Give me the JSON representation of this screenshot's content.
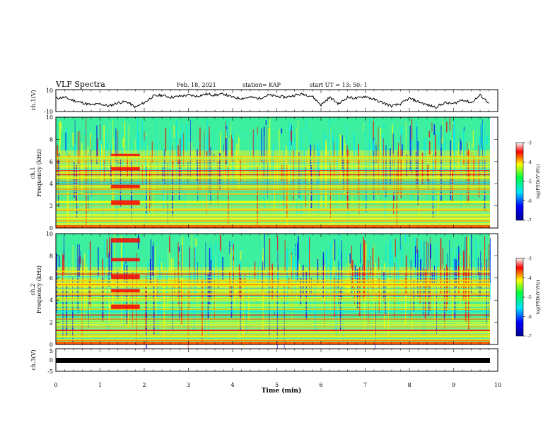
{
  "header": {
    "title": "VLF Spectra",
    "date": "Feb. 18, 2021",
    "station": "station= KAP",
    "start": "start  UT  =   13: 50: 1"
  },
  "chart_data": [
    {
      "id": "ch1-waveform",
      "type": "line",
      "ylabel": "ch.1(V)",
      "ylim": [
        -10,
        10
      ],
      "yticks": [
        "10",
        "-10"
      ],
      "xlim": [
        0,
        10
      ],
      "series": [
        {
          "x": [
            0.0,
            0.2,
            0.4,
            0.6,
            0.8,
            1.0,
            1.2,
            1.4,
            1.6,
            1.8,
            2.0,
            2.2,
            2.4,
            2.6,
            2.8,
            3.0,
            3.2,
            3.4,
            3.6,
            3.8,
            4.0,
            4.2,
            4.4,
            4.6,
            4.8,
            5.0,
            5.2,
            5.4,
            5.6,
            5.8,
            6.0,
            6.2,
            6.4,
            6.6,
            6.8,
            7.0,
            7.2,
            7.4,
            7.6,
            7.8,
            8.0,
            8.2,
            8.4,
            8.6,
            8.8,
            9.0,
            9.2,
            9.4,
            9.6,
            9.8
          ],
          "y": [
            2,
            3,
            0,
            -2,
            -4,
            -3,
            -5,
            -2,
            -1,
            -6,
            -2,
            4,
            5,
            3,
            4,
            5,
            4,
            6,
            5,
            6,
            3,
            2,
            3,
            2,
            5,
            4,
            3,
            5,
            6,
            4,
            -4,
            3,
            -3,
            3,
            2,
            4,
            1,
            -2,
            -5,
            -3,
            2,
            -1,
            -4,
            -6,
            -2,
            -3,
            1,
            -2,
            5,
            -2
          ]
        }
      ]
    },
    {
      "id": "ch1-spectrogram",
      "type": "heatmap",
      "ylabel": "Frequency (kHz)",
      "channel_label": "ch.1",
      "ylim": [
        0,
        10
      ],
      "yticks": [
        "0",
        "2",
        "4",
        "6",
        "8",
        "10"
      ],
      "xlim": [
        0,
        10
      ]
    },
    {
      "id": "ch2-spectrogram",
      "type": "heatmap",
      "ylabel": "Frequency (kHz)",
      "channel_label": "ch.2",
      "ylim": [
        0,
        10
      ],
      "yticks": [
        "0",
        "2",
        "4",
        "6",
        "8",
        "10"
      ],
      "xlim": [
        0,
        10
      ]
    },
    {
      "id": "ch3-waveform",
      "type": "line",
      "ylabel": "ch.3(V)",
      "ylim": [
        -5,
        5
      ],
      "yticks": [
        "5",
        "0",
        "-5"
      ],
      "xlim": [
        0,
        10
      ],
      "series": [
        {
          "x": [
            0,
            9.8
          ],
          "y": [
            0,
            0
          ]
        }
      ]
    }
  ],
  "xaxis": {
    "label": "Time  (min)",
    "ticks": [
      "0",
      "1",
      "2",
      "3",
      "4",
      "5",
      "6",
      "7",
      "8",
      "9",
      "10"
    ]
  },
  "colorbar": {
    "label": "log(PSD)(V²/Hz)",
    "range": [
      -7,
      -3
    ],
    "ticks": [
      "-3",
      "-4",
      "-5",
      "-6",
      "-7"
    ],
    "colors": [
      "#00009a",
      "#0000ff",
      "#00e5ff",
      "#00ff40",
      "#ffff00",
      "#ff0000",
      "#ffffff"
    ]
  }
}
